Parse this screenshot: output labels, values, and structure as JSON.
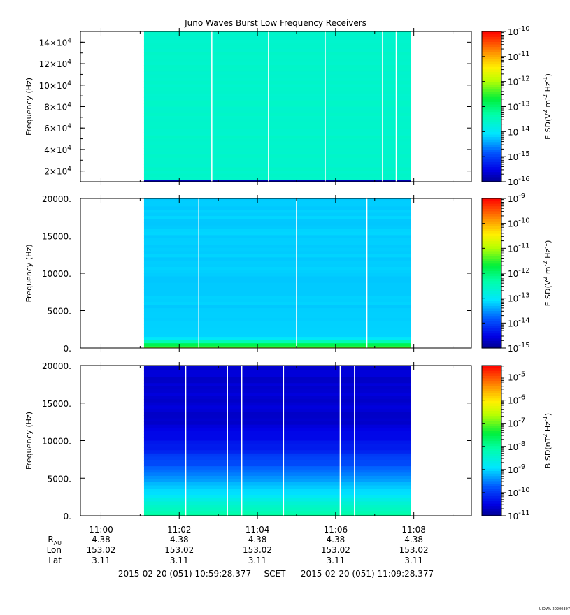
{
  "title": "Juno Waves Burst Low Frequency Receivers",
  "stamp": "UIOWA 20200307",
  "x_axis": {
    "tick_labels": [
      "11:00",
      "11:02",
      "11:04",
      "11:06",
      "11:08"
    ],
    "range_start": "10:59:28.377",
    "range_end": "11:09:28.377"
  },
  "ephemeris": {
    "rows": [
      {
        "label": "R",
        "sub": "AU",
        "values": [
          "4.38",
          "4.38",
          "4.38",
          "4.38",
          "4.38"
        ]
      },
      {
        "label": "Lon",
        "sub": "",
        "values": [
          "153.02",
          "153.02",
          "153.02",
          "153.02",
          "153.02"
        ]
      },
      {
        "label": "Lat",
        "sub": "",
        "values": [
          "3.11",
          "3.11",
          "3.11",
          "3.11",
          "3.11"
        ]
      }
    ]
  },
  "time_footer": {
    "start": "2015-02-20 (051) 10:59:28.377",
    "label": "SCET",
    "end": "2015-02-20 (051) 11:09:28.377"
  },
  "chart_data": [
    {
      "type": "heatmap",
      "title": "Juno Waves Burst Low Frequency Receivers",
      "ylabel": "Frequency (Hz)",
      "ytick_mantissas": [
        "2",
        "4",
        "6",
        "8",
        "10",
        "12",
        "14"
      ],
      "ytick_exp": "4",
      "ylim": [
        10000,
        150000
      ],
      "x_data_start": "11:01:06",
      "x_data_end": "11:07:56",
      "gap_times": [
        "11:02:50",
        "11:04:17",
        "11:05:44",
        "11:07:12",
        "11:07:33"
      ],
      "colorbar": {
        "label_parts": [
          "E SD(V",
          "2",
          " m",
          "-2",
          " Hz",
          "-1",
          ")"
        ],
        "exponents": [
          "-10",
          "-11",
          "-12",
          "-13",
          "-14",
          "-15",
          "-16"
        ],
        "range": [
          -16,
          -10
        ],
        "scale": "log"
      },
      "background_level": -13.6,
      "low_band_level": -15.8
    },
    {
      "type": "heatmap",
      "ylabel": "Frequency (Hz)",
      "ytick_labels": [
        "0.",
        "5000.",
        "10000.",
        "15000.",
        "20000."
      ],
      "ylim": [
        0,
        20000
      ],
      "x_data_start": "11:01:06",
      "x_data_end": "11:07:56",
      "gap_times": [
        "11:02:30",
        "11:05:00",
        "11:06:48"
      ],
      "colorbar": {
        "label_parts": [
          "E SD(V",
          "2",
          " m",
          "-2",
          " Hz",
          "-1",
          ")"
        ],
        "exponents": [
          "-9",
          "-10",
          "-11",
          "-12",
          "-13",
          "-14",
          "-15"
        ],
        "range": [
          -15,
          -9
        ],
        "scale": "log"
      },
      "background_level": -13.2,
      "low_band_level": -11.2
    },
    {
      "type": "heatmap",
      "ylabel": "Frequency (Hz)",
      "ytick_labels": [
        "0.",
        "5000.",
        "10000.",
        "15000.",
        "20000."
      ],
      "ylim": [
        0,
        20000
      ],
      "x_data_start": "11:01:06",
      "x_data_end": "11:07:56",
      "gap_times": [
        "11:02:10",
        "11:03:14",
        "11:03:36",
        "11:04:40",
        "11:06:07",
        "11:06:29"
      ],
      "colorbar": {
        "label_parts": [
          "B SD(nT",
          "2",
          " Hz",
          "-1",
          ")"
        ],
        "exponents": [
          "-5",
          "-6",
          "-7",
          "-8",
          "-9",
          "-10",
          "-11"
        ],
        "range": [
          -11,
          -4.5
        ],
        "scale": "log"
      },
      "background_level": -10.6,
      "low_band_level": -8.0
    }
  ]
}
